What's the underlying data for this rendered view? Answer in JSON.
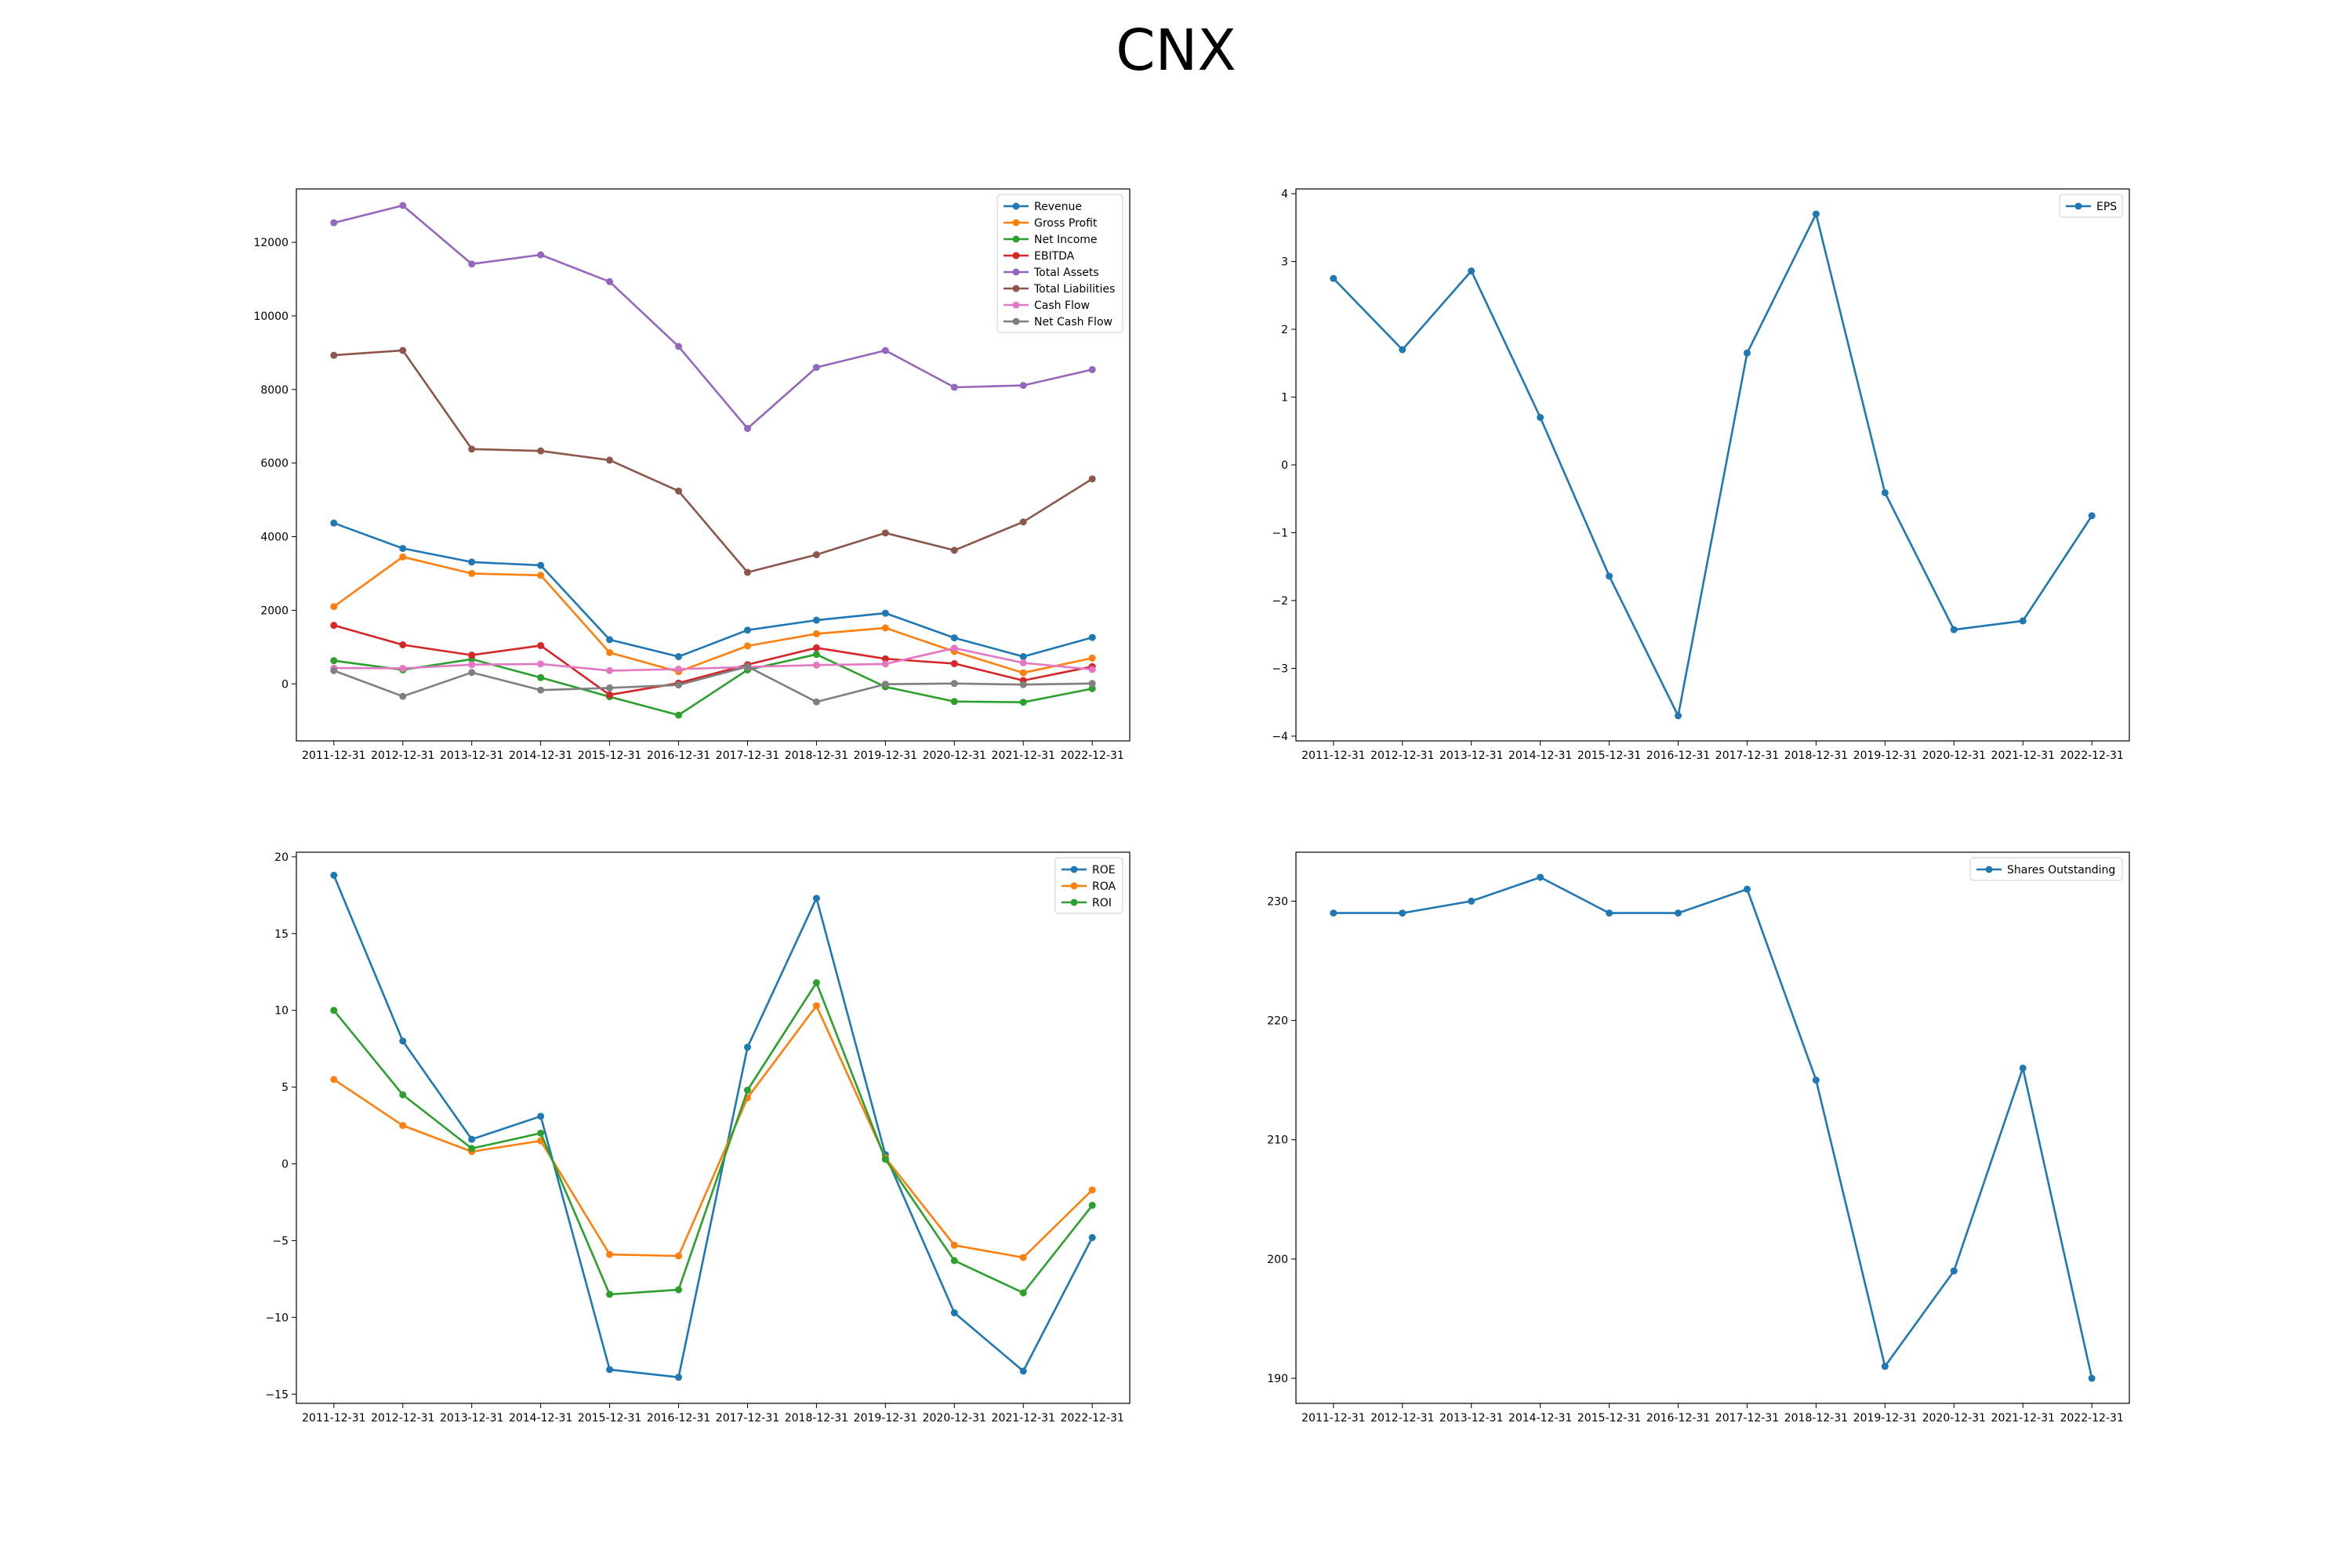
{
  "figure": {
    "title": "CNX"
  },
  "chart_data": [
    {
      "type": "line",
      "x": [
        "2011-12-31",
        "2012-12-31",
        "2013-12-31",
        "2014-12-31",
        "2015-12-31",
        "2016-12-31",
        "2017-12-31",
        "2018-12-31",
        "2019-12-31",
        "2020-12-31",
        "2021-12-31",
        "2022-12-31"
      ],
      "ylim": [
        -1550,
        13450
      ],
      "yticks": [
        0,
        2000,
        4000,
        6000,
        8000,
        10000,
        12000
      ],
      "ytick_labels": [
        "0",
        "2000",
        "4000",
        "6000",
        "8000",
        "10000",
        "12000"
      ],
      "legend_loc": "upper right",
      "grid": false,
      "series": [
        {
          "name": "Revenue",
          "color": "#1f77b4",
          "values": [
            4370,
            3680,
            3310,
            3220,
            1200,
            740,
            1460,
            1730,
            1920,
            1250,
            740,
            1260
          ]
        },
        {
          "name": "Gross Profit",
          "color": "#ff7f0e",
          "values": [
            2100,
            3450,
            3000,
            2950,
            850,
            330,
            1030,
            1360,
            1520,
            880,
            300,
            700
          ]
        },
        {
          "name": "Net Income",
          "color": "#2ca02c",
          "values": [
            630,
            380,
            670,
            170,
            -350,
            -850,
            380,
            800,
            -80,
            -480,
            -500,
            -130
          ]
        },
        {
          "name": "EBITDA",
          "color": "#d62728",
          "values": [
            1590,
            1060,
            780,
            1040,
            -300,
            20,
            520,
            980,
            680,
            550,
            90,
            470
          ]
        },
        {
          "name": "Total Assets",
          "color": "#9467bd",
          "values": [
            12530,
            13000,
            11410,
            11660,
            10930,
            9170,
            6940,
            8600,
            9060,
            8060,
            8110,
            8540
          ]
        },
        {
          "name": "Total Liabilities",
          "color": "#8c564b",
          "values": [
            8930,
            9060,
            6380,
            6330,
            6080,
            5240,
            3030,
            3510,
            4100,
            3630,
            4400,
            5570
          ]
        },
        {
          "name": "Cash Flow",
          "color": "#e377c2",
          "values": [
            430,
            420,
            520,
            540,
            360,
            400,
            460,
            510,
            540,
            970,
            570,
            390
          ]
        },
        {
          "name": "Net Cash Flow",
          "color": "#7f7f7f",
          "values": [
            360,
            -340,
            310,
            -170,
            -110,
            -30,
            470,
            -490,
            -10,
            10,
            -20,
            10
          ]
        }
      ]
    },
    {
      "type": "line",
      "x": [
        "2011-12-31",
        "2012-12-31",
        "2013-12-31",
        "2014-12-31",
        "2015-12-31",
        "2016-12-31",
        "2017-12-31",
        "2018-12-31",
        "2019-12-31",
        "2020-12-31",
        "2021-12-31",
        "2022-12-31"
      ],
      "ylim": [
        -4.07,
        4.07
      ],
      "yticks": [
        -4,
        -3,
        -2,
        -1,
        0,
        1,
        2,
        3,
        4
      ],
      "ytick_labels": [
        "−4",
        "−3",
        "−2",
        "−1",
        "0",
        "1",
        "2",
        "3",
        "4"
      ],
      "legend_loc": "upper right",
      "grid": false,
      "series": [
        {
          "name": "EPS",
          "color": "#1f77b4",
          "values": [
            2.75,
            1.7,
            2.86,
            0.7,
            -1.64,
            -3.7,
            1.65,
            3.7,
            -0.41,
            -2.43,
            -2.3,
            -0.75
          ]
        }
      ]
    },
    {
      "type": "line",
      "x": [
        "2011-12-31",
        "2012-12-31",
        "2013-12-31",
        "2014-12-31",
        "2015-12-31",
        "2016-12-31",
        "2017-12-31",
        "2018-12-31",
        "2019-12-31",
        "2020-12-31",
        "2021-12-31",
        "2022-12-31"
      ],
      "ylim": [
        -15.6,
        20.3
      ],
      "yticks": [
        -15,
        -10,
        -5,
        0,
        5,
        10,
        15,
        20
      ],
      "ytick_labels": [
        "−15",
        "−10",
        "−5",
        "0",
        "5",
        "10",
        "15",
        "20"
      ],
      "legend_loc": "upper right",
      "grid": false,
      "series": [
        {
          "name": "ROE",
          "color": "#1f77b4",
          "values": [
            18.8,
            8.0,
            1.6,
            3.1,
            -13.4,
            -13.9,
            7.6,
            17.3,
            0.6,
            -9.7,
            -13.5,
            -4.8
          ]
        },
        {
          "name": "ROA",
          "color": "#ff7f0e",
          "values": [
            5.5,
            2.5,
            0.8,
            1.5,
            -5.9,
            -6.0,
            4.3,
            10.3,
            0.4,
            -5.3,
            -6.1,
            -1.7
          ]
        },
        {
          "name": "ROI",
          "color": "#2ca02c",
          "values": [
            10.0,
            4.5,
            1.0,
            2.0,
            -8.5,
            -8.2,
            4.8,
            11.8,
            0.3,
            -6.3,
            -8.4,
            -2.7
          ]
        }
      ]
    },
    {
      "type": "line",
      "x": [
        "2011-12-31",
        "2012-12-31",
        "2013-12-31",
        "2014-12-31",
        "2015-12-31",
        "2016-12-31",
        "2017-12-31",
        "2018-12-31",
        "2019-12-31",
        "2020-12-31",
        "2021-12-31",
        "2022-12-31"
      ],
      "ylim": [
        187.9,
        234.1
      ],
      "yticks": [
        190,
        200,
        210,
        220,
        230
      ],
      "ytick_labels": [
        "190",
        "200",
        "210",
        "220",
        "230"
      ],
      "legend_loc": "upper right",
      "grid": false,
      "series": [
        {
          "name": "Shares Outstanding",
          "color": "#1f77b4",
          "values": [
            229,
            229,
            230,
            232,
            229,
            229,
            231,
            215,
            191,
            199,
            216,
            190
          ]
        }
      ]
    }
  ]
}
